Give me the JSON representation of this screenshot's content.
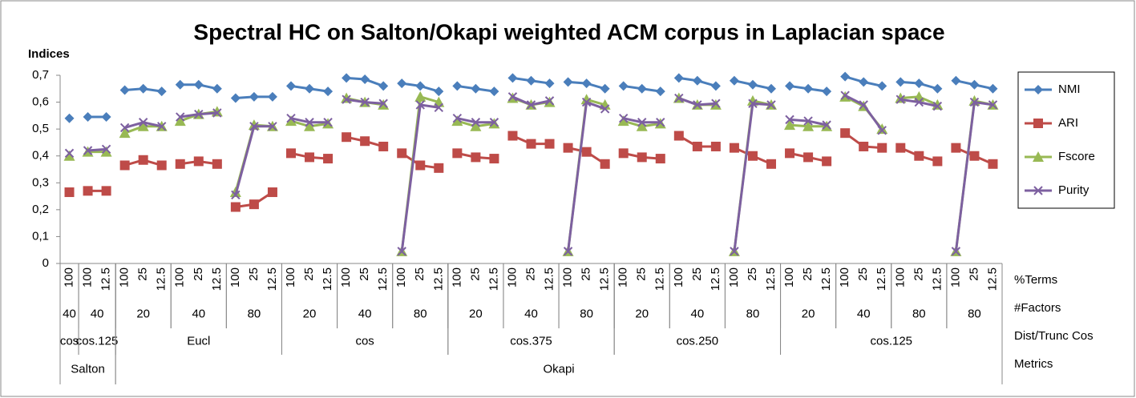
{
  "chart_data": {
    "type": "line",
    "title": "Spectral HC on Salton/Okapi weighted ACM corpus in Laplacian space",
    "y_label": "Indices",
    "level_labels": [
      "%Terms",
      "#Factors",
      "Dist/Trunc Cos",
      "Metrics"
    ],
    "categories": [
      [
        "Salton",
        "cos",
        "40",
        "100"
      ],
      [
        "Salton",
        "cos.125",
        "40",
        "100"
      ],
      [
        "Salton",
        "cos.125",
        "40",
        "12.5"
      ],
      [
        "Okapi",
        "Eucl",
        "20",
        "100"
      ],
      [
        "Okapi",
        "Eucl",
        "20",
        "25"
      ],
      [
        "Okapi",
        "Eucl",
        "20",
        "12.5"
      ],
      [
        "Okapi",
        "Eucl",
        "40",
        "100"
      ],
      [
        "Okapi",
        "Eucl",
        "40",
        "25"
      ],
      [
        "Okapi",
        "Eucl",
        "40",
        "12.5"
      ],
      [
        "Okapi",
        "Eucl",
        "80",
        "100"
      ],
      [
        "Okapi",
        "Eucl",
        "80",
        "25"
      ],
      [
        "Okapi",
        "Eucl",
        "80",
        "12.5"
      ],
      [
        "Okapi",
        "cos",
        "20",
        "100"
      ],
      [
        "Okapi",
        "cos",
        "20",
        "25"
      ],
      [
        "Okapi",
        "cos",
        "20",
        "12.5"
      ],
      [
        "Okapi",
        "cos",
        "40",
        "100"
      ],
      [
        "Okapi",
        "cos",
        "40",
        "25"
      ],
      [
        "Okapi",
        "cos",
        "40",
        "12.5"
      ],
      [
        "Okapi",
        "cos",
        "80",
        "100"
      ],
      [
        "Okapi",
        "cos",
        "80",
        "25"
      ],
      [
        "Okapi",
        "cos",
        "80",
        "12.5"
      ],
      [
        "Okapi",
        "cos.375",
        "20",
        "100"
      ],
      [
        "Okapi",
        "cos.375",
        "20",
        "25"
      ],
      [
        "Okapi",
        "cos.375",
        "20",
        "12.5"
      ],
      [
        "Okapi",
        "cos.375",
        "40",
        "100"
      ],
      [
        "Okapi",
        "cos.375",
        "40",
        "25"
      ],
      [
        "Okapi",
        "cos.375",
        "40",
        "12.5"
      ],
      [
        "Okapi",
        "cos.375",
        "80",
        "100"
      ],
      [
        "Okapi",
        "cos.375",
        "80",
        "25"
      ],
      [
        "Okapi",
        "cos.375",
        "80",
        "12.5"
      ],
      [
        "Okapi",
        "cos.250",
        "20",
        "100"
      ],
      [
        "Okapi",
        "cos.250",
        "20",
        "25"
      ],
      [
        "Okapi",
        "cos.250",
        "20",
        "12.5"
      ],
      [
        "Okapi",
        "cos.250",
        "40",
        "100"
      ],
      [
        "Okapi",
        "cos.250",
        "40",
        "25"
      ],
      [
        "Okapi",
        "cos.250",
        "40",
        "12.5"
      ],
      [
        "Okapi",
        "cos.250",
        "80",
        "100"
      ],
      [
        "Okapi",
        "cos.250",
        "80",
        "25"
      ],
      [
        "Okapi",
        "cos.250",
        "80",
        "12.5"
      ],
      [
        "Okapi",
        "cos.125",
        "20",
        "100"
      ],
      [
        "Okapi",
        "cos.125",
        "20",
        "25"
      ],
      [
        "Okapi",
        "cos.125",
        "20",
        "12.5"
      ],
      [
        "Okapi",
        "cos.125",
        "40",
        "100"
      ],
      [
        "Okapi",
        "cos.125",
        "40",
        "25"
      ],
      [
        "Okapi",
        "cos.125",
        "40",
        "12.5"
      ],
      [
        "Okapi",
        "cos.125",
        "80",
        "100"
      ],
      [
        "Okapi",
        "cos.125",
        "80",
        "25"
      ],
      [
        "Okapi",
        "cos.125",
        "80",
        "12.5"
      ],
      [
        "Okapi",
        "cos.125",
        "80 ",
        "100"
      ],
      [
        "Okapi",
        "cos.125",
        "80 ",
        "25"
      ],
      [
        "Okapi",
        "cos.125",
        "80 ",
        "12.5"
      ]
    ],
    "series": [
      {
        "name": "NMI",
        "color": "#4a7ebb",
        "marker": "diamond",
        "values": [
          0.54,
          0.545,
          0.545,
          0.645,
          0.65,
          0.64,
          0.665,
          0.665,
          0.65,
          0.615,
          0.62,
          0.62,
          0.66,
          0.65,
          0.64,
          0.69,
          0.685,
          0.66,
          0.67,
          0.66,
          0.64,
          0.66,
          0.65,
          0.64,
          0.69,
          0.68,
          0.67,
          0.675,
          0.67,
          0.65,
          0.66,
          0.65,
          0.64,
          0.69,
          0.68,
          0.66,
          0.68,
          0.665,
          0.65,
          0.66,
          0.65,
          0.64,
          0.695,
          0.675,
          0.66,
          0.675,
          0.67,
          0.65,
          0.68,
          0.665,
          0.65
        ]
      },
      {
        "name": "ARI",
        "color": "#be4b48",
        "marker": "square",
        "values": [
          0.265,
          0.27,
          0.27,
          0.365,
          0.385,
          0.365,
          0.37,
          0.38,
          0.37,
          0.21,
          0.22,
          0.265,
          0.41,
          0.395,
          0.39,
          0.47,
          0.455,
          0.435,
          0.41,
          0.365,
          0.355,
          0.41,
          0.395,
          0.39,
          0.475,
          0.445,
          0.445,
          0.43,
          0.415,
          0.37,
          0.41,
          0.395,
          0.39,
          0.475,
          0.435,
          0.435,
          0.43,
          0.4,
          0.37,
          0.41,
          0.395,
          0.38,
          0.485,
          0.435,
          0.43,
          0.43,
          0.4,
          0.38,
          0.43,
          0.4,
          0.37
        ]
      },
      {
        "name": "Fscore",
        "color": "#98b954",
        "marker": "triangle",
        "values": [
          0.4,
          0.415,
          0.415,
          0.485,
          0.51,
          0.51,
          0.53,
          0.555,
          0.565,
          0.265,
          0.515,
          0.51,
          0.53,
          0.51,
          0.52,
          0.615,
          0.6,
          0.59,
          0.045,
          0.62,
          0.6,
          0.53,
          0.51,
          0.52,
          0.615,
          0.59,
          0.6,
          0.045,
          0.61,
          0.59,
          0.53,
          0.51,
          0.52,
          0.615,
          0.59,
          0.59,
          0.045,
          0.605,
          0.59,
          0.515,
          0.51,
          0.51,
          0.62,
          0.585,
          0.5,
          0.615,
          0.62,
          0.59,
          0.045,
          0.605,
          0.59
        ]
      },
      {
        "name": "Purity",
        "color": "#7d60a0",
        "marker": "x",
        "values": [
          0.41,
          0.42,
          0.425,
          0.505,
          0.525,
          0.51,
          0.545,
          0.555,
          0.56,
          0.255,
          0.51,
          0.51,
          0.54,
          0.525,
          0.525,
          0.61,
          0.6,
          0.595,
          0.045,
          0.59,
          0.58,
          0.54,
          0.525,
          0.525,
          0.62,
          0.59,
          0.605,
          0.045,
          0.6,
          0.575,
          0.54,
          0.525,
          0.525,
          0.615,
          0.59,
          0.595,
          0.045,
          0.595,
          0.59,
          0.535,
          0.53,
          0.515,
          0.625,
          0.59,
          0.495,
          0.61,
          0.6,
          0.585,
          0.045,
          0.6,
          0.59
        ]
      }
    ],
    "ylim": [
      0,
      0.7
    ],
    "yticks": [
      0,
      {
        "value": 0.1,
        "label": "0,1"
      },
      {
        "value": 0.2,
        "label": "0,2"
      },
      {
        "value": 0.3,
        "label": "0,3"
      },
      {
        "value": 0.4,
        "label": "0,4"
      },
      {
        "value": 0.5,
        "label": "0,5"
      },
      {
        "value": 0.6,
        "label": "0,6"
      },
      {
        "value": 0.7,
        "label": "0,7"
      }
    ],
    "legend": "right"
  }
}
